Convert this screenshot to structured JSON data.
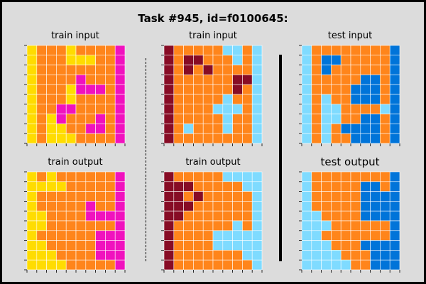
{
  "title": "Task #945, id=f0100645:",
  "palette": {
    "4": "#FFDC00",
    "7": "#FF851B",
    "6": "#F012BE",
    "9": "#870C25",
    "8": "#7FDBFF",
    "1": "#0074D9"
  },
  "panels": [
    {
      "label": "train input",
      "grid": [
        [
          4,
          7,
          7,
          7,
          4,
          7,
          7,
          7,
          7,
          6
        ],
        [
          4,
          7,
          7,
          7,
          4,
          4,
          4,
          7,
          7,
          6
        ],
        [
          4,
          7,
          7,
          7,
          7,
          7,
          7,
          7,
          7,
          6
        ],
        [
          4,
          7,
          7,
          7,
          7,
          6,
          7,
          7,
          7,
          6
        ],
        [
          4,
          7,
          7,
          7,
          4,
          6,
          6,
          6,
          7,
          6
        ],
        [
          4,
          7,
          7,
          7,
          4,
          7,
          7,
          7,
          7,
          6
        ],
        [
          4,
          7,
          7,
          6,
          6,
          7,
          7,
          7,
          7,
          6
        ],
        [
          4,
          7,
          4,
          6,
          7,
          7,
          7,
          6,
          7,
          6
        ],
        [
          4,
          7,
          4,
          4,
          7,
          7,
          6,
          6,
          7,
          6
        ],
        [
          4,
          7,
          4,
          4,
          4,
          7,
          7,
          7,
          7,
          6
        ]
      ]
    },
    {
      "label": "train input",
      "grid": [
        [
          9,
          7,
          7,
          7,
          7,
          7,
          8,
          8,
          7,
          8
        ],
        [
          9,
          7,
          9,
          9,
          7,
          7,
          7,
          8,
          7,
          8
        ],
        [
          9,
          7,
          9,
          7,
          9,
          7,
          7,
          7,
          7,
          8
        ],
        [
          9,
          7,
          7,
          7,
          7,
          7,
          7,
          9,
          9,
          8
        ],
        [
          9,
          7,
          7,
          7,
          7,
          7,
          7,
          9,
          7,
          8
        ],
        [
          9,
          7,
          7,
          7,
          7,
          7,
          8,
          7,
          7,
          8
        ],
        [
          9,
          7,
          7,
          7,
          7,
          8,
          8,
          8,
          7,
          8
        ],
        [
          9,
          7,
          7,
          7,
          7,
          7,
          8,
          7,
          7,
          8
        ],
        [
          9,
          7,
          8,
          7,
          7,
          7,
          8,
          7,
          7,
          8
        ],
        [
          9,
          7,
          7,
          7,
          7,
          7,
          7,
          7,
          7,
          8
        ]
      ]
    },
    {
      "label": "test input",
      "grid": [
        [
          8,
          7,
          7,
          7,
          7,
          7,
          7,
          7,
          7,
          1
        ],
        [
          8,
          7,
          1,
          1,
          7,
          7,
          7,
          7,
          7,
          1
        ],
        [
          8,
          7,
          1,
          7,
          7,
          7,
          7,
          7,
          7,
          1
        ],
        [
          8,
          7,
          7,
          7,
          7,
          7,
          1,
          1,
          7,
          1
        ],
        [
          8,
          7,
          7,
          7,
          7,
          1,
          1,
          1,
          7,
          1
        ],
        [
          8,
          7,
          8,
          7,
          7,
          1,
          1,
          1,
          7,
          1
        ],
        [
          8,
          7,
          8,
          8,
          7,
          7,
          7,
          7,
          8,
          1
        ],
        [
          8,
          7,
          8,
          8,
          7,
          7,
          1,
          1,
          7,
          1
        ],
        [
          8,
          7,
          8,
          7,
          1,
          1,
          1,
          1,
          7,
          1
        ],
        [
          8,
          7,
          8,
          7,
          7,
          1,
          1,
          1,
          7,
          1
        ]
      ]
    },
    {
      "label": "train output",
      "grid": [
        [
          4,
          7,
          4,
          7,
          7,
          7,
          7,
          7,
          7,
          6
        ],
        [
          4,
          4,
          4,
          4,
          7,
          7,
          7,
          7,
          7,
          6
        ],
        [
          4,
          7,
          7,
          7,
          7,
          7,
          7,
          7,
          7,
          6
        ],
        [
          4,
          7,
          7,
          7,
          7,
          7,
          6,
          7,
          7,
          6
        ],
        [
          4,
          4,
          7,
          7,
          7,
          7,
          6,
          6,
          6,
          6
        ],
        [
          4,
          4,
          7,
          7,
          7,
          7,
          7,
          7,
          7,
          6
        ],
        [
          4,
          7,
          7,
          7,
          7,
          7,
          7,
          6,
          6,
          6
        ],
        [
          4,
          4,
          7,
          7,
          7,
          7,
          7,
          6,
          6,
          6
        ],
        [
          4,
          4,
          4,
          7,
          7,
          7,
          7,
          6,
          6,
          6
        ],
        [
          4,
          4,
          4,
          4,
          7,
          7,
          7,
          7,
          7,
          6
        ]
      ]
    },
    {
      "label": "train output",
      "grid": [
        [
          9,
          7,
          7,
          7,
          7,
          7,
          8,
          8,
          8,
          8
        ],
        [
          9,
          9,
          9,
          7,
          7,
          7,
          7,
          7,
          8,
          8
        ],
        [
          9,
          9,
          7,
          9,
          7,
          7,
          7,
          7,
          7,
          8
        ],
        [
          9,
          9,
          9,
          7,
          7,
          7,
          7,
          7,
          7,
          8
        ],
        [
          9,
          9,
          7,
          7,
          7,
          7,
          7,
          7,
          7,
          8
        ],
        [
          9,
          7,
          7,
          7,
          7,
          7,
          7,
          8,
          7,
          8
        ],
        [
          9,
          7,
          7,
          7,
          7,
          8,
          8,
          8,
          8,
          8
        ],
        [
          9,
          7,
          7,
          7,
          7,
          8,
          8,
          8,
          8,
          8
        ],
        [
          9,
          7,
          7,
          7,
          7,
          7,
          7,
          7,
          8,
          8
        ],
        [
          9,
          7,
          7,
          7,
          7,
          7,
          7,
          7,
          7,
          8
        ]
      ]
    },
    {
      "label": "test output",
      "grid": [
        [
          8,
          7,
          7,
          7,
          7,
          7,
          7,
          7,
          7,
          1
        ],
        [
          8,
          7,
          7,
          7,
          7,
          7,
          1,
          1,
          7,
          1
        ],
        [
          8,
          7,
          7,
          7,
          7,
          7,
          1,
          1,
          1,
          1
        ],
        [
          8,
          7,
          7,
          7,
          7,
          7,
          1,
          1,
          1,
          1
        ],
        [
          8,
          8,
          7,
          7,
          7,
          7,
          1,
          1,
          1,
          1
        ],
        [
          8,
          8,
          8,
          7,
          7,
          7,
          7,
          7,
          7,
          1
        ],
        [
          8,
          8,
          7,
          7,
          7,
          7,
          7,
          7,
          7,
          1
        ],
        [
          8,
          8,
          8,
          7,
          7,
          7,
          1,
          1,
          1,
          1
        ],
        [
          8,
          8,
          8,
          8,
          7,
          7,
          7,
          1,
          1,
          1
        ],
        [
          8,
          8,
          8,
          8,
          8,
          7,
          7,
          1,
          1,
          1
        ]
      ]
    }
  ]
}
